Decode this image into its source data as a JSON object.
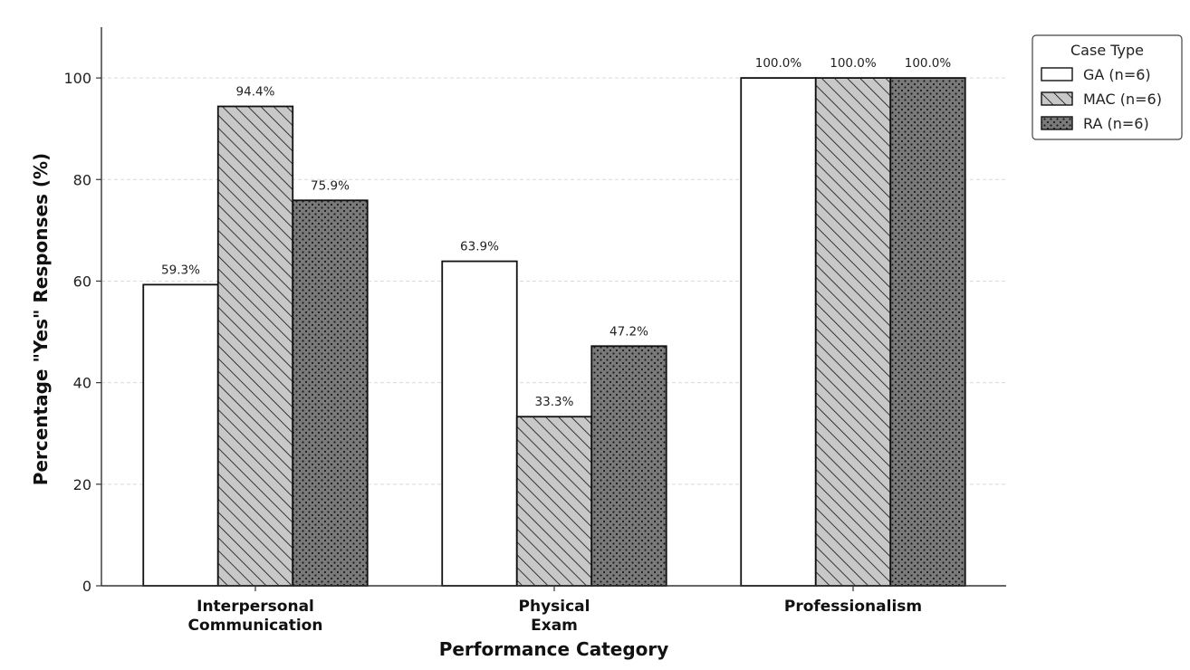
{
  "chart_data": {
    "type": "bar",
    "categories": [
      [
        "Interpersonal",
        "Communication"
      ],
      [
        "Physical",
        "Exam"
      ],
      [
        "Professionalism"
      ]
    ],
    "series": [
      {
        "name": "GA (n=6)",
        "values": [
          59.3,
          63.9,
          100.0
        ],
        "pattern": "none",
        "fill": "#ffffff"
      },
      {
        "name": "MAC (n=6)",
        "values": [
          94.4,
          33.3,
          100.0
        ],
        "pattern": "diagonal-hatch",
        "fill": "#c8c8c8"
      },
      {
        "name": "RA (n=6)",
        "values": [
          75.9,
          47.2,
          100.0
        ],
        "pattern": "dots",
        "fill": "#7a7a7a"
      }
    ],
    "data_labels": [
      [
        "59.3%",
        "63.9%",
        "100.0%"
      ],
      [
        "94.4%",
        "33.3%",
        "100.0%"
      ],
      [
        "75.9%",
        "47.2%",
        "100.0%"
      ]
    ],
    "xlabel": "Performance Category",
    "ylabel": "Percentage \"Yes\" Responses (%)",
    "ylim": [
      0,
      110
    ],
    "yticks": [
      0,
      20,
      40,
      60,
      80,
      100
    ],
    "grid": "horizontal-dashed",
    "legend": {
      "title": "Case Type",
      "placement": "outside-top-right"
    }
  }
}
